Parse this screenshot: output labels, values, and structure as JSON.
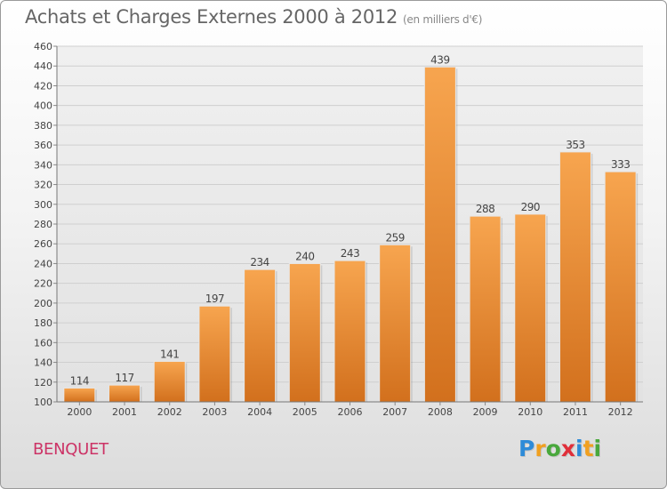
{
  "header": {
    "title": "Achats et Charges Externes 2000 à 2012",
    "unit": "(en milliers d'€)"
  },
  "footer": {
    "commune": "BENQUET",
    "brand": "Proxiti",
    "brand_letters": [
      {
        "ch": "P",
        "color": "#2e8bd8"
      },
      {
        "ch": "r",
        "color": "#f0a020"
      },
      {
        "ch": "o",
        "color": "#49a83c"
      },
      {
        "ch": "x",
        "color": "#e02f3a"
      },
      {
        "ch": "i",
        "color": "#2e8bd8"
      },
      {
        "ch": "t",
        "color": "#f0a020"
      },
      {
        "ch": "i",
        "color": "#49a83c"
      }
    ]
  },
  "colors": {
    "bar_top": "#f7a54f",
    "bar_bottom": "#d2701d",
    "commune": "#cc3366"
  },
  "chart_data": {
    "type": "bar",
    "title": "Achats et Charges Externes 2000 à 2012",
    "subtitle": "(en milliers d'€)",
    "categories": [
      "2000",
      "2001",
      "2002",
      "2003",
      "2004",
      "2005",
      "2006",
      "2007",
      "2008",
      "2009",
      "2010",
      "2011",
      "2012"
    ],
    "values": [
      114,
      117,
      141,
      197,
      234,
      240,
      243,
      259,
      439,
      288,
      290,
      353,
      333
    ],
    "ylim": [
      100,
      460
    ],
    "ytick_step": 20,
    "grid": true
  }
}
